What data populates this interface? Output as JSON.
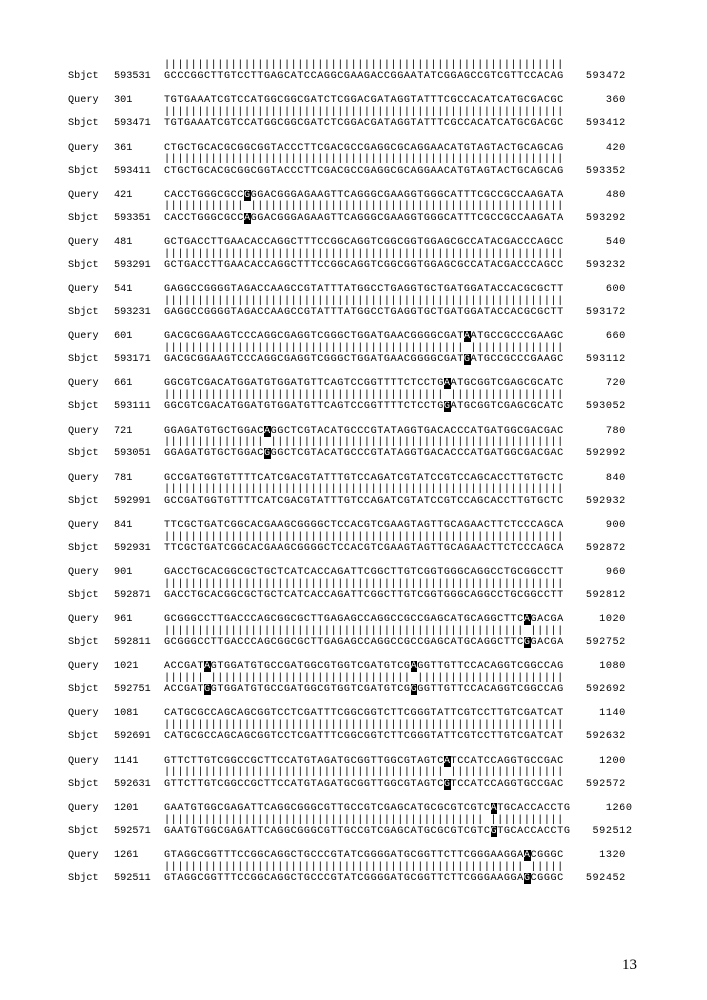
{
  "page_number": "13",
  "font_family_mono": "Courier New",
  "font_size_pt": 10.2,
  "letter_spacing_seq": 0.55,
  "background_color": "#ffffff",
  "text_color": "#000000",
  "highlight_bg": "#000000",
  "highlight_fg": "#ffffff",
  "seq_length": 60,
  "blocks": [
    {
      "match": {
        "prefix_space": true,
        "gaps": []
      },
      "sbjct_only_top": {
        "label": "Sbjct",
        "pos_left": "593531",
        "seq": "GCCCGGCTTGTCCTTGAGCATCCAGGCGAAGACCGGAATATCGGAGCCGTCGTTCCACAG",
        "pos_right": "593472"
      }
    },
    {
      "query": {
        "label": "Query",
        "pos_left": "301",
        "seq": "TGTGAAATCGTCCATGGCGGCGATCTCGGACGATAGGTATTTCGCCACATCATGCGACGC",
        "pos_right": "360"
      },
      "match": {
        "gaps": []
      },
      "sbjct": {
        "label": "Sbjct",
        "pos_left": "593471",
        "seq": "TGTGAAATCGTCCATGGCGGCGATCTCGGACGATAGGTATTTCGCCACATCATGCGACGC",
        "pos_right": "593412"
      }
    },
    {
      "query": {
        "label": "Query",
        "pos_left": "361",
        "seq": "CTGCTGCACGCGGCGGTACCCTTCGACGCCGAGGCGCAGGAACATGTAGTACTGCAGCAG",
        "pos_right": "420"
      },
      "match": {
        "gaps": []
      },
      "sbjct": {
        "label": "Sbjct",
        "pos_left": "593411",
        "seq": "CTGCTGCACGCGGCGGTACCCTTCGACGCCGAGGCGCAGGAACATGTAGTACTGCAGCAG",
        "pos_right": "593352"
      }
    },
    {
      "query": {
        "label": "Query",
        "pos_left": "421",
        "seq": "CACCTGGGCGCC",
        "hl": "G",
        "seq2": "GGACGGGAGAAGTTCAGGGCGAAGGTGGGCATTTCGCCGCCAAGATA",
        "pos_right": "480"
      },
      "match": {
        "gaps": [
          12
        ]
      },
      "sbjct": {
        "label": "Sbjct",
        "pos_left": "593351",
        "seq": "CACCTGGGCGCC",
        "hl": "A",
        "seq2": "GGACGGGAGAAGTTCAGGGCGAAGGTGGGCATTTCGCCGCCAAGATA",
        "pos_right": "593292"
      }
    },
    {
      "query": {
        "label": "Query",
        "pos_left": "481",
        "seq": "GCTGACCTTGAACACCAGGCTTTCCGGCAGGTCGGCGGTGGAGCGCCATACGACCCAGCC",
        "pos_right": "540"
      },
      "match": {
        "gaps": []
      },
      "sbjct": {
        "label": "Sbjct",
        "pos_left": "593291",
        "seq": "GCTGACCTTGAACACCAGGCTTTCCGGCAGGTCGGCGGTGGAGCGCCATACGACCCAGCC",
        "pos_right": "593232"
      }
    },
    {
      "query": {
        "label": "Query",
        "pos_left": "541",
        "seq": "GAGGCCGGGGTAGACCAAGCCGTATTTATGGCCTGAGGTGCTGATGGATACCACGCGCTT",
        "pos_right": "600"
      },
      "match": {
        "gaps": []
      },
      "sbjct": {
        "label": "Sbjct",
        "pos_left": "593231",
        "seq": "GAGGCCGGGGTAGACCAAGCCGTATTTATGGCCTGAGGTGCTGATGGATACCACGCGCTT",
        "pos_right": "593172"
      }
    },
    {
      "query": {
        "label": "Query",
        "pos_left": "601",
        "seq": "GACGCGGAAGTCCCAGGCGAGGTCGGGCTGGATGAACGGGGCGAT",
        "hl": "A",
        "seq2": "ATGCCGCCCGAAGC",
        "pos_right": "660"
      },
      "match": {
        "gaps": [
          45
        ]
      },
      "sbjct": {
        "label": "Sbjct",
        "pos_left": "593171",
        "seq": "GACGCGGAAGTCCCAGGCGAGGTCGGGCTGGATGAACGGGGCGAT",
        "hl": "G",
        "seq2": "ATGCCGCCCGAAGC",
        "pos_right": "593112"
      }
    },
    {
      "query": {
        "label": "Query",
        "pos_left": "661",
        "seq": "GGCGTCGACATGGATGTGGATGTTCAGTCCGGTTTTCTCCTG",
        "hl": "A",
        "seq2": "ATGCGGTCGAGCGCATC",
        "pos_right": "720"
      },
      "match": {
        "gaps": [
          42
        ]
      },
      "sbjct": {
        "label": "Sbjct",
        "pos_left": "593111",
        "seq": "GGCGTCGACATGGATGTGGATGTTCAGTCCGGTTTTCTCCTG",
        "hl": "G",
        "seq2": "ATGCGGTCGAGCGCATC",
        "pos_right": "593052"
      }
    },
    {
      "query": {
        "label": "Query",
        "pos_left": "721",
        "seq": "GGAGATGTGCTGGAC",
        "hl": "A",
        "seq2": "GGCTCGTACATGCCCGTATAGGTGACACCCATGATGGCGACGAC",
        "pos_right": "780"
      },
      "match": {
        "gaps": [
          15
        ]
      },
      "sbjct": {
        "label": "Sbjct",
        "pos_left": "593051",
        "seq": "GGAGATGTGCTGGAC",
        "hl": "G",
        "seq2": "GGCTCGTACATGCCCGTATAGGTGACACCCATGATGGCGACGAC",
        "pos_right": "592992"
      }
    },
    {
      "query": {
        "label": "Query",
        "pos_left": "781",
        "seq": "GCCGATGGTGTTTTCATCGACGTATTTGTCCAGATCGTATCCGTCCAGCACCTTGTGCTC",
        "pos_right": "840"
      },
      "match": {
        "gaps": []
      },
      "sbjct": {
        "label": "Sbjct",
        "pos_left": "592991",
        "seq": "GCCGATGGTGTTTTCATCGACGTATTTGTCCAGATCGTATCCGTCCAGCACCTTGTGCTC",
        "pos_right": "592932"
      }
    },
    {
      "query": {
        "label": "Query",
        "pos_left": "841",
        "seq": "TTCGCTGATCGGCACGAAGCGGGGCTCCACGTCGAAGTAGTTGCAGAACTTCTCCCAGCA",
        "pos_right": "900"
      },
      "match": {
        "gaps": []
      },
      "sbjct": {
        "label": "Sbjct",
        "pos_left": "592931",
        "seq": "TTCGCTGATCGGCACGAAGCGGGGCTCCACGTCGAAGTAGTTGCAGAACTTCTCCCAGCA",
        "pos_right": "592872"
      }
    },
    {
      "query": {
        "label": "Query",
        "pos_left": "901",
        "seq": "GACCTGCACGGCGCTGCTCATCACCAGATTCGGCTTGTCGGTGGGCAGGCCTGCGGCCTT",
        "pos_right": "960"
      },
      "match": {
        "gaps": []
      },
      "sbjct": {
        "label": "Sbjct",
        "pos_left": "592871",
        "seq": "GACCTGCACGGCGCTGCTCATCACCAGATTCGGCTTGTCGGTGGGCAGGCCTGCGGCCTT",
        "pos_right": "592812"
      }
    },
    {
      "query": {
        "label": "Query",
        "pos_left": "961",
        "seq": "GCGGGCCTTGACCCAGCGGCGCTTGAGAGCCAGGCCGCCGAGCATGCAGGCTTC",
        "hl": "A",
        "seq2": "GACGA",
        "pos_right": "1020"
      },
      "match": {
        "gaps": [
          54
        ]
      },
      "sbjct": {
        "label": "Sbjct",
        "pos_left": "592811",
        "seq": "GCGGGCCTTGACCCAGCGGCGCTTGAGAGCCAGGCCGCCGAGCATGCAGGCTTC",
        "hl": "G",
        "seq2": "GACGA",
        "pos_right": "592752"
      }
    },
    {
      "query": {
        "label": "Query",
        "pos_left": "1021",
        "seq": "ACCGAT",
        "hl": "A",
        "seq2": "GTGGATGTGCCGATGGCGTGGTCGATGTCG",
        "hl2": "A",
        "seq3": "GGTTGTTCCACAGGTCGGCCAG",
        "pos_right": "1080"
      },
      "match": {
        "gaps": [
          6,
          37
        ]
      },
      "sbjct": {
        "label": "Sbjct",
        "pos_left": "592751",
        "seq": "ACCGAT",
        "hl": "G",
        "seq2": "GTGGATGTGCCGATGGCGTGGTCGATGTCG",
        "hl2": "G",
        "seq3": "GGTTGTTCCACAGGTCGGCCAG",
        "pos_right": "592692"
      }
    },
    {
      "query": {
        "label": "Query",
        "pos_left": "1081",
        "seq": "CATGCGCCAGCAGCGGTCCTCGATTTCGGCGGTCTTCGGGTATTCGTCCTTGTCGATCAT",
        "pos_right": "1140"
      },
      "match": {
        "gaps": []
      },
      "sbjct": {
        "label": "Sbjct",
        "pos_left": "592691",
        "seq": "CATGCGCCAGCAGCGGTCCTCGATTTCGGCGGTCTTCGGGTATTCGTCCTTGTCGATCAT",
        "pos_right": "592632"
      }
    },
    {
      "query": {
        "label": "Query",
        "pos_left": "1141",
        "seq": "GTTCTTGTCGGCCGCTTCCATGTAGATGCGGTTGGCGTAGTC",
        "hl": "A",
        "seq2": "TCCATCCAGGTGCCGAC",
        "pos_right": "1200"
      },
      "match": {
        "gaps": [
          42
        ]
      },
      "sbjct": {
        "label": "Sbjct",
        "pos_left": "592631",
        "seq": "GTTCTTGTCGGCCGCTTCCATGTAGATGCGGTTGGCGTAGTC",
        "hl": "G",
        "seq2": "TCCATCCAGGTGCCGAC",
        "pos_right": "592572"
      }
    },
    {
      "query": {
        "label": "Query",
        "pos_left": "1201",
        "seq": "GAATGTGGCGAGATTCAGGCGGGCGTTGCCGTCGAGCATGCGCGTCGTC",
        "hl": "A",
        "seq2": "TGCACCACCTG",
        "pos_right": "1260"
      },
      "match": {
        "gaps": [
          48
        ]
      },
      "sbjct": {
        "label": "Sbjct",
        "pos_left": "592571",
        "seq": "GAATGTGGCGAGATTCAGGCGGGCGTTGCCGTCGAGCATGCGCGTCGTC",
        "hl": "G",
        "seq2": "TGCACCACCTG",
        "pos_right": "592512"
      }
    },
    {
      "query": {
        "label": "Query",
        "pos_left": "1261",
        "seq": "GTAGGCGGTTTCCGGCAGGCTGCCCGTATCGGGGATGCGGTTCTTCGGGAAGGA",
        "hl": "A",
        "seq2": "CGGGC",
        "pos_right": "1320"
      },
      "match": {
        "gaps": [
          54
        ]
      },
      "sbjct": {
        "label": "Sbjct",
        "pos_left": "592511",
        "seq": "GTAGGCGGTTTCCGGCAGGCTGCCCGTATCGGGGATGCGGTTCTTCGGGAAGGA",
        "hl": "G",
        "seq2": "CGGGC",
        "pos_right": "592452"
      }
    }
  ]
}
